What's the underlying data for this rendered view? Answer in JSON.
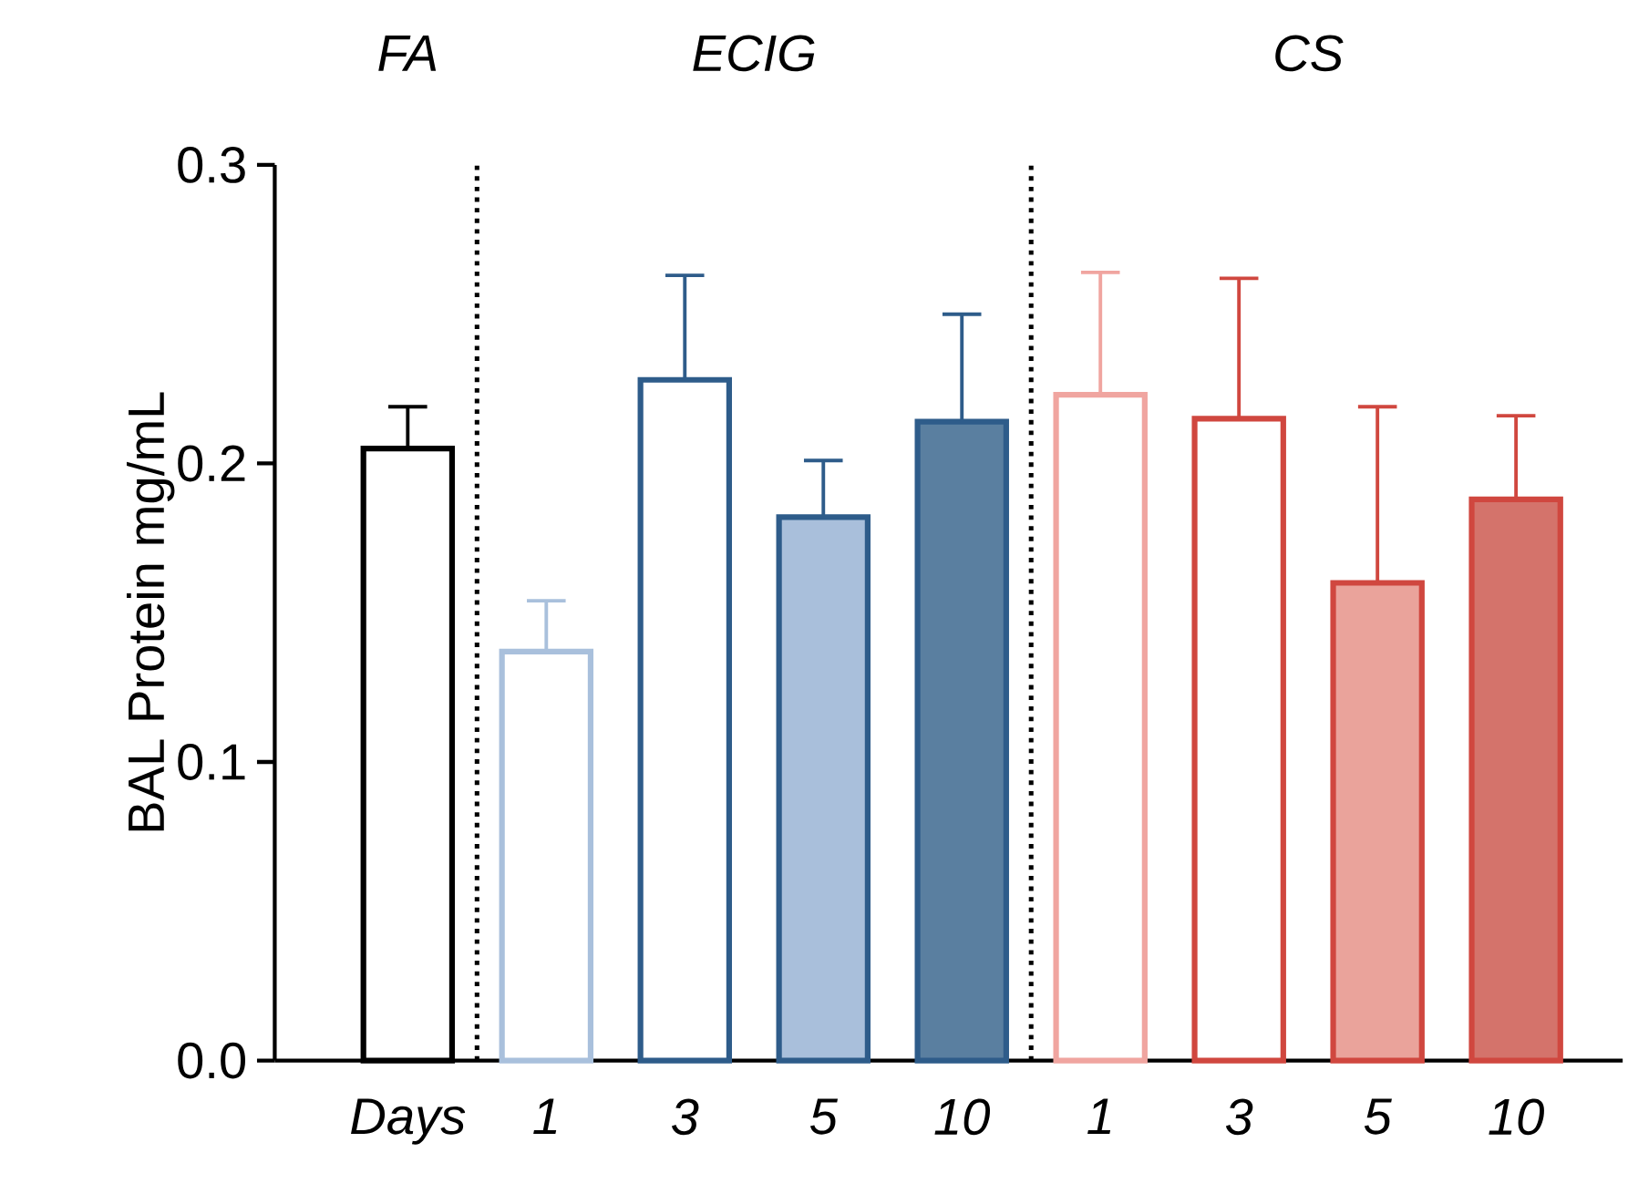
{
  "chart_data": {
    "type": "bar",
    "categories": [
      "Days",
      "1",
      "3",
      "5",
      "10",
      "1",
      "3",
      "5",
      "10"
    ],
    "values": [
      0.205,
      0.137,
      0.228,
      0.182,
      0.214,
      0.223,
      0.215,
      0.16,
      0.188
    ],
    "colors": [
      "#000000",
      "#a9c0dc",
      "#2e5c8a",
      "#a9bfdb",
      "#5a7fa0",
      "#f0a5a0",
      "#d0473f",
      "#eaa39b",
      "#d4736b"
    ],
    "errors": [
      [
        0.205,
        0.219
      ],
      [
        0.137,
        0.154
      ],
      [
        0.228,
        0.263
      ],
      [
        0.182,
        0.201
      ],
      [
        0.214,
        0.25
      ],
      [
        0.223,
        0.264
      ],
      [
        0.215,
        0.262
      ],
      [
        0.16,
        0.219
      ],
      [
        0.188,
        0.216
      ]
    ],
    "ylabel": "BAL Protein mg/mL",
    "ylim": [
      0,
      0.3
    ],
    "yticks": [
      {
        "value": 0,
        "label": "0.0"
      },
      {
        "value": 0.1,
        "label": "0.1"
      },
      {
        "value": 0.2,
        "label": "0.2"
      },
      {
        "value": 0.3,
        "label": "0.3"
      }
    ],
    "annotations": [
      "FA",
      "ECIG",
      "CS"
    ],
    "grid": false
  }
}
